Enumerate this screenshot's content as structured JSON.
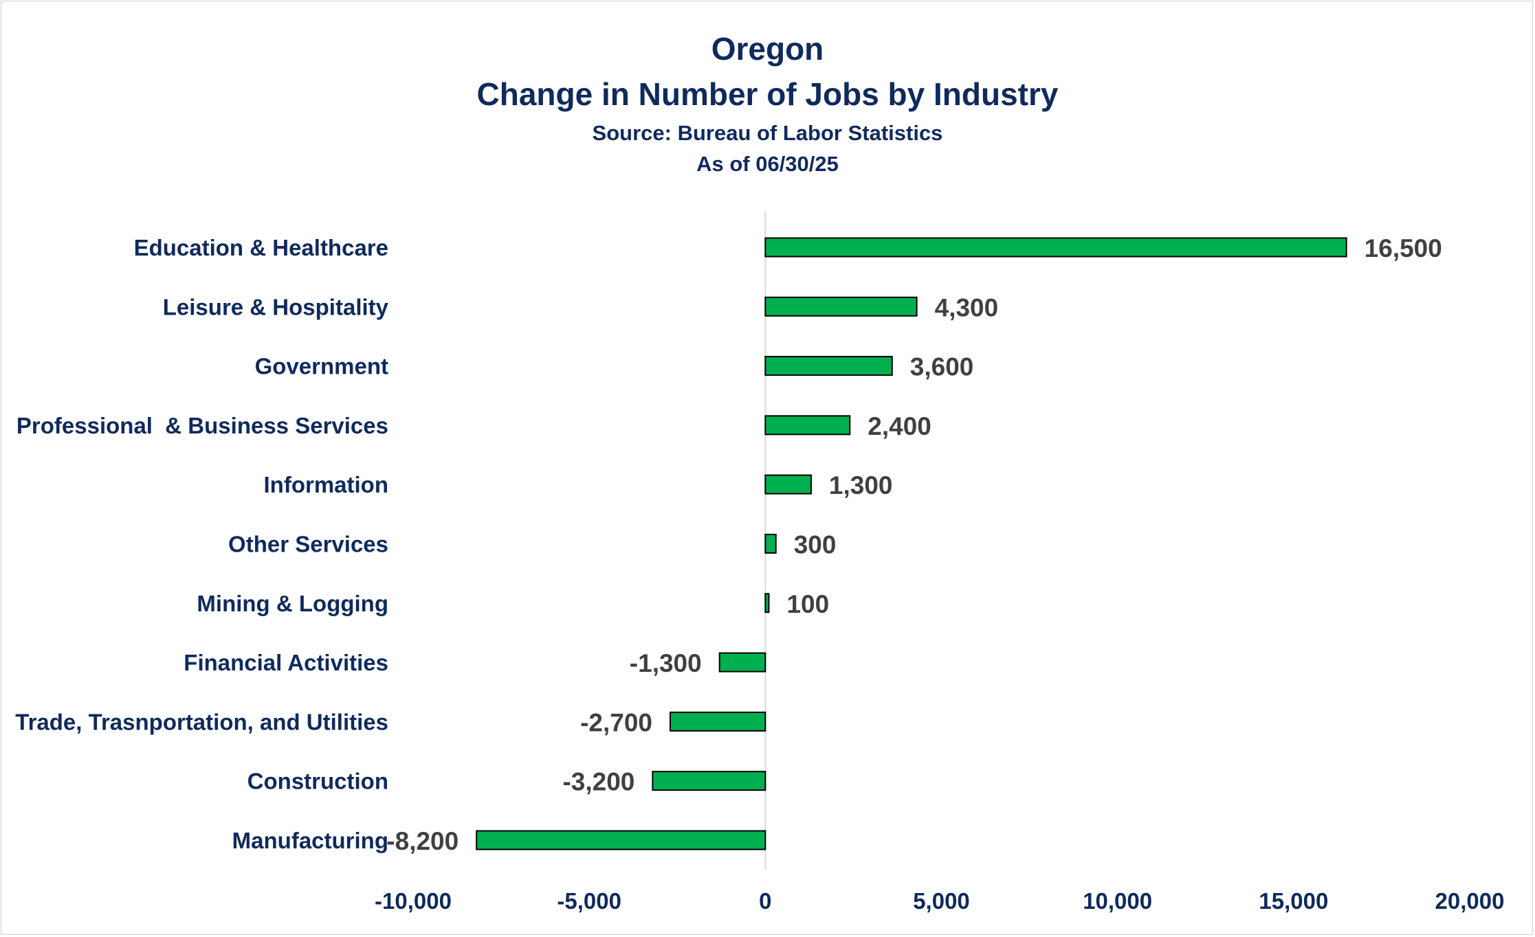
{
  "chart_data": {
    "type": "bar",
    "orientation": "horizontal",
    "title": "Oregon",
    "subtitle": "Change in Number of Jobs by Industry",
    "source": "Source: Bureau of Labor Statistics",
    "date": "As of 06/30/25",
    "categories": [
      "Education & Healthcare",
      "Leisure & Hospitality",
      "Government",
      "Professional  & Business Services",
      "Information",
      "Other Services",
      "Mining & Logging",
      "Financial Activities",
      "Trade, Trasnportation, and Utilities",
      "Construction",
      "Manufacturing"
    ],
    "values": [
      16500,
      4300,
      3600,
      2400,
      1300,
      300,
      100,
      -1300,
      -2700,
      -3200,
      -8200
    ],
    "value_labels": [
      "16,500",
      "4,300",
      "3,600",
      "2,400",
      "1,300",
      "300",
      "100",
      "-1,300",
      "-2,700",
      "-3,200",
      "-8,200"
    ],
    "xlim": [
      -10000,
      20000
    ],
    "x_ticks": [
      -10000,
      -5000,
      0,
      5000,
      10000,
      15000,
      20000
    ],
    "x_tick_labels": [
      "-10,000",
      "-5,000",
      "0",
      "5,000",
      "10,000",
      "15,000",
      "20,000"
    ],
    "grid": false,
    "legend": "none",
    "bar_color": "#00b050",
    "bar_edge_color": "#000000"
  }
}
